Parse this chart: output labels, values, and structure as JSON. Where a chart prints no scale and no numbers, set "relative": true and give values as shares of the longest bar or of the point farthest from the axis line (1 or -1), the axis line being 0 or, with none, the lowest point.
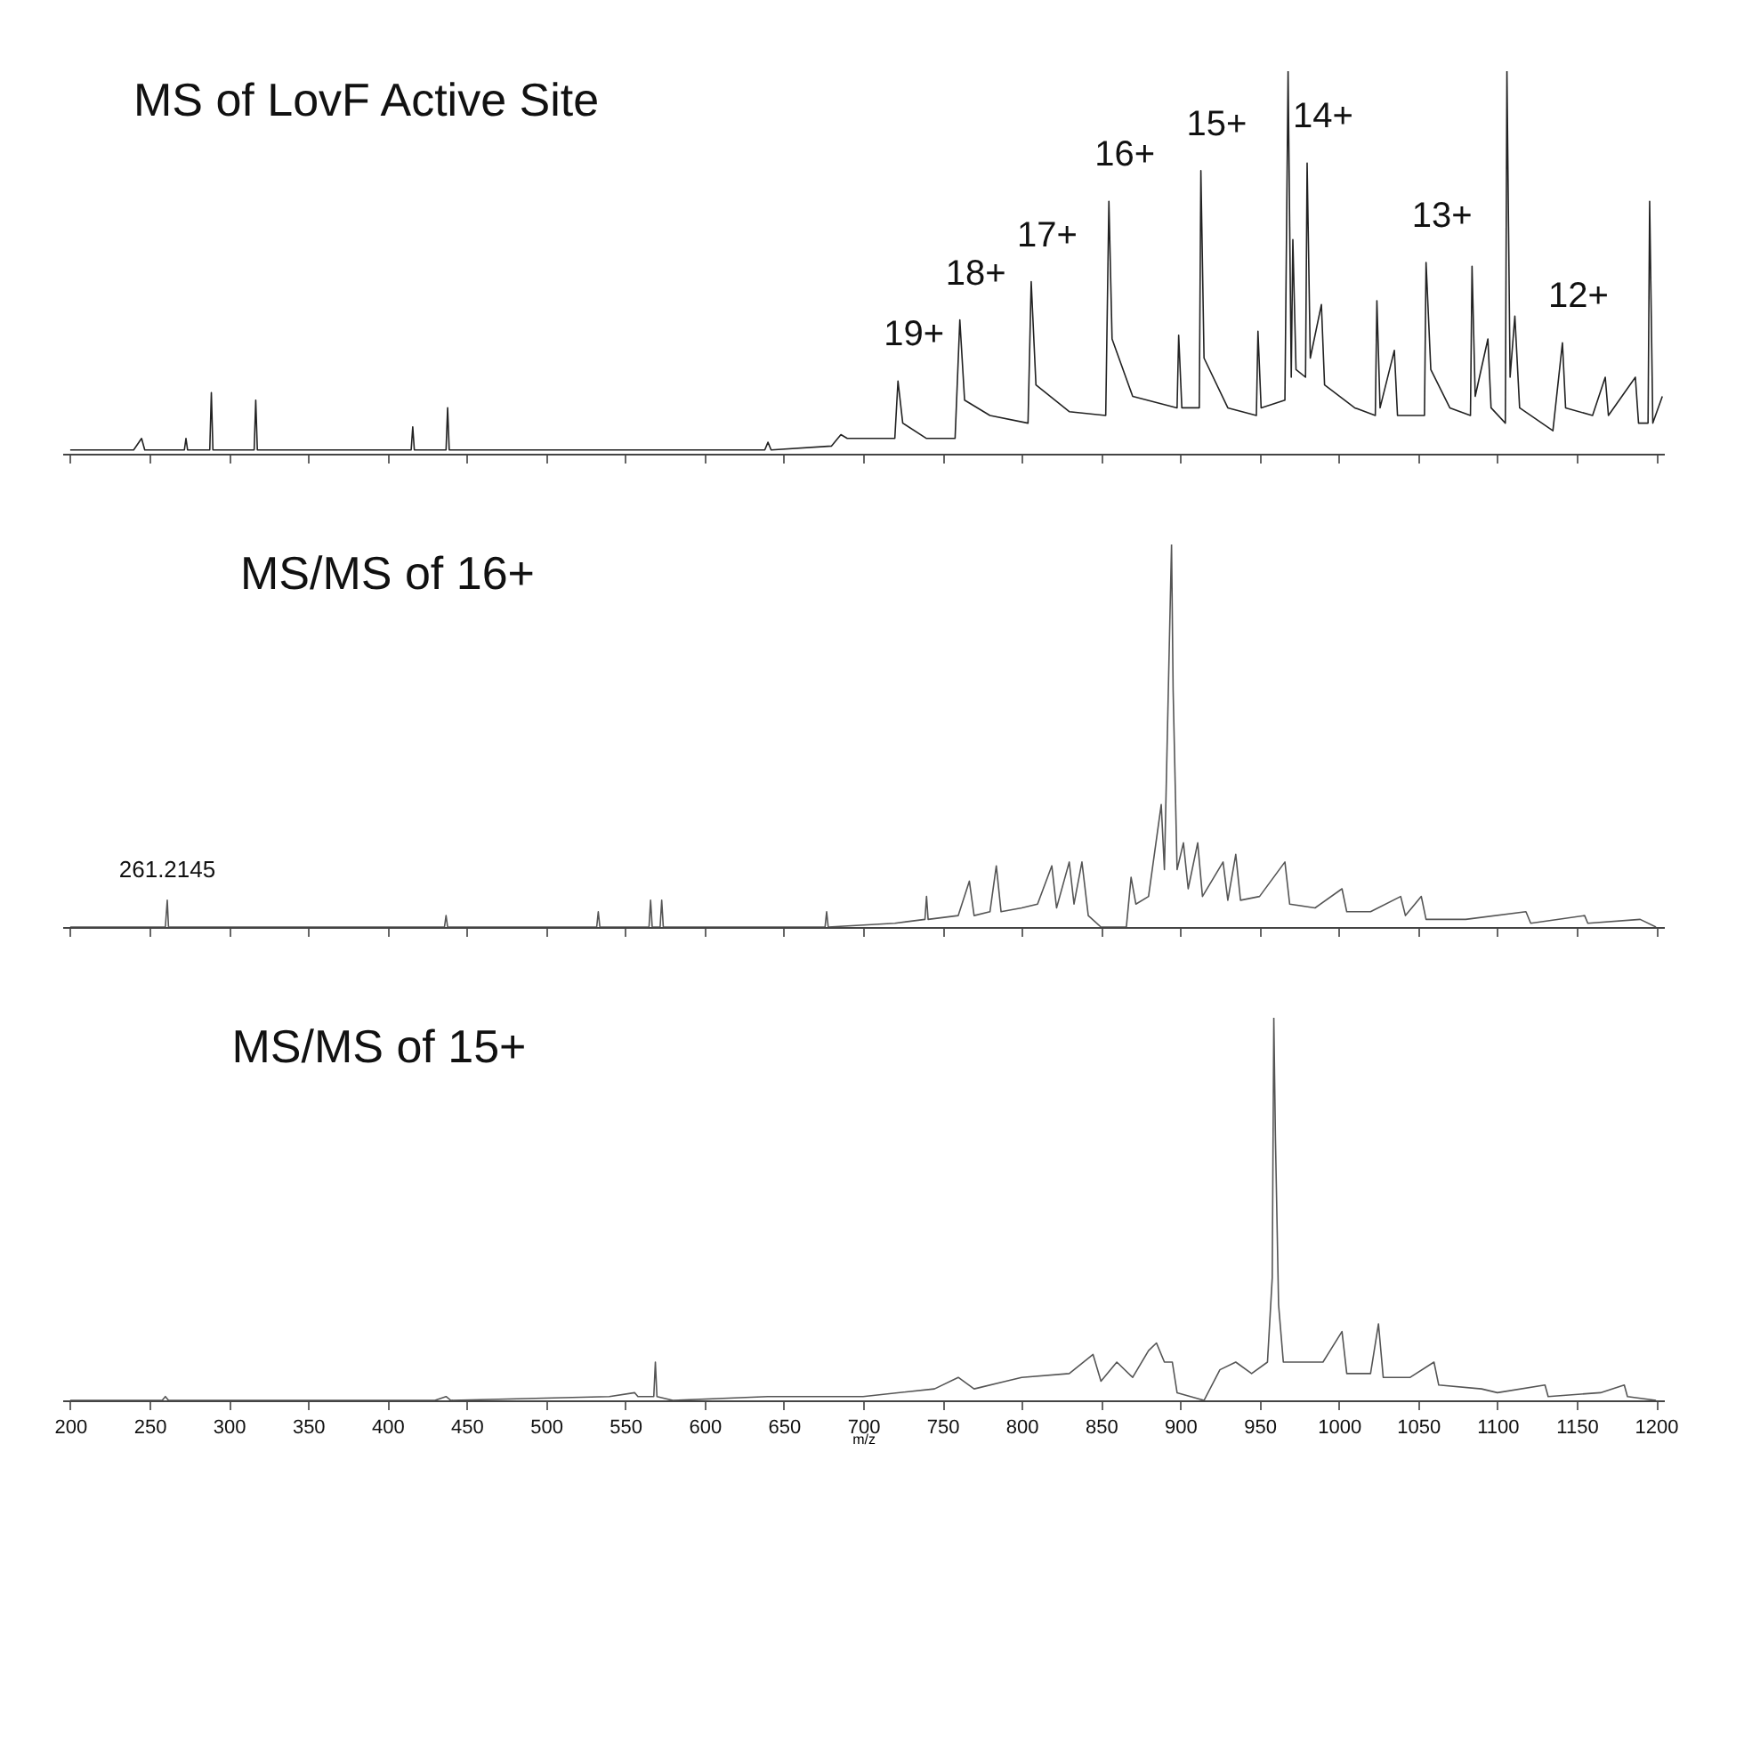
{
  "chart_data": [
    {
      "type": "line",
      "title": "MS of LovF Active Site",
      "relative": true,
      "xlim": [
        195,
        1205
      ],
      "xticks": [
        200,
        250,
        300,
        350,
        400,
        450,
        500,
        550,
        600,
        650,
        700,
        750,
        800,
        850,
        900,
        950,
        1000,
        1050,
        1100,
        1150,
        1200
      ],
      "tick_labels": false,
      "grid": false,
      "marker": "none",
      "line_style": "solid",
      "annotations": [
        {
          "text": "19+",
          "x": 722,
          "y": 0.19
        },
        {
          "text": "18+",
          "x": 761,
          "y": 0.35
        },
        {
          "text": "17+",
          "x": 806,
          "y": 0.45
        },
        {
          "text": "16+",
          "x": 855,
          "y": 0.66
        },
        {
          "text": "15+",
          "x": 913,
          "y": 0.74
        },
        {
          "text": "14+",
          "x": 980,
          "y": 0.76
        },
        {
          "text": "13+",
          "x": 1055,
          "y": 0.5
        },
        {
          "text": "12+",
          "x": 1141,
          "y": 0.29
        }
      ],
      "series": [
        {
          "color": "#222222",
          "x": [
            200,
            240,
            245,
            247,
            272,
            273,
            274,
            288,
            289,
            290,
            316,
            317,
            318,
            390,
            400,
            415,
            416,
            417,
            437,
            438,
            439,
            500,
            600,
            638,
            640,
            642,
            680,
            686,
            690,
            720,
            722,
            725,
            740,
            758,
            761,
            764,
            780,
            804,
            806,
            809,
            830,
            853,
            855,
            857,
            870,
            898,
            899,
            901,
            912,
            913,
            915,
            930,
            948,
            949,
            951,
            966,
            968,
            970,
            971,
            973,
            979,
            980,
            982,
            989,
            991,
            1010,
            1023,
            1024,
            1026,
            1035,
            1037,
            1054,
            1055,
            1058,
            1070,
            1083,
            1084,
            1086,
            1094,
            1096,
            1105,
            1106,
            1108,
            1111,
            1114,
            1135,
            1141,
            1143,
            1160,
            1168,
            1170,
            1187,
            1189,
            1195,
            1196,
            1198,
            1204
          ],
          "values": [
            0.01,
            0.01,
            0.04,
            0.01,
            0.01,
            0.04,
            0.01,
            0.01,
            0.16,
            0.01,
            0.01,
            0.14,
            0.01,
            0.01,
            0.01,
            0.01,
            0.07,
            0.01,
            0.01,
            0.12,
            0.01,
            0.01,
            0.01,
            0.01,
            0.03,
            0.01,
            0.02,
            0.05,
            0.04,
            0.04,
            0.19,
            0.08,
            0.04,
            0.04,
            0.35,
            0.14,
            0.1,
            0.08,
            0.45,
            0.18,
            0.11,
            0.1,
            0.66,
            0.3,
            0.15,
            0.12,
            0.31,
            0.12,
            0.12,
            0.74,
            0.25,
            0.12,
            0.1,
            0.32,
            0.12,
            0.14,
            1.0,
            0.2,
            0.56,
            0.22,
            0.2,
            0.76,
            0.25,
            0.39,
            0.18,
            0.12,
            0.1,
            0.4,
            0.12,
            0.27,
            0.1,
            0.1,
            0.5,
            0.22,
            0.12,
            0.1,
            0.49,
            0.15,
            0.3,
            0.12,
            0.08,
            1.0,
            0.2,
            0.36,
            0.12,
            0.06,
            0.29,
            0.12,
            0.1,
            0.2,
            0.1,
            0.2,
            0.08,
            0.08,
            0.66,
            0.08,
            0.15
          ]
        }
      ]
    },
    {
      "type": "line",
      "title": "MS/MS of 16+",
      "relative": true,
      "xlim": [
        195,
        1205
      ],
      "xticks": [
        200,
        250,
        300,
        350,
        400,
        450,
        500,
        550,
        600,
        650,
        700,
        750,
        800,
        850,
        900,
        950,
        1000,
        1050,
        1100,
        1150,
        1200
      ],
      "tick_labels": false,
      "grid": false,
      "marker": "none",
      "line_style": "solid",
      "annotations": [
        {
          "text": "261.2145",
          "x": 261.2,
          "y": 0.07
        }
      ],
      "series": [
        {
          "color": "#555555",
          "x": [
            200,
            260,
            261.2,
            262,
            436,
            437,
            438,
            532,
            533,
            534,
            565,
            566,
            567,
            572,
            573,
            574,
            650,
            676,
            677,
            678,
            720,
            739,
            740,
            741,
            760,
            767,
            770,
            780,
            784,
            787,
            800,
            810,
            819,
            822,
            830,
            833,
            838,
            842,
            850,
            866,
            869,
            872,
            880,
            888,
            890,
            894.5,
            895.5,
            898,
            902,
            905,
            911,
            914,
            927,
            930,
            935,
            938,
            950,
            966,
            969,
            985,
            1002,
            1005,
            1020,
            1039,
            1042,
            1052,
            1055,
            1080,
            1118,
            1121,
            1155,
            1157,
            1190,
            1200
          ],
          "values": [
            0,
            0,
            0.07,
            0,
            0,
            0.03,
            0,
            0,
            0.04,
            0,
            0,
            0.07,
            0,
            0,
            0.07,
            0,
            0,
            0,
            0.04,
            0,
            0.01,
            0.02,
            0.08,
            0.02,
            0.03,
            0.12,
            0.03,
            0.04,
            0.16,
            0.04,
            0.05,
            0.06,
            0.16,
            0.05,
            0.17,
            0.06,
            0.17,
            0.03,
            0,
            0,
            0.13,
            0.06,
            0.08,
            0.32,
            0.15,
            1.0,
            0.62,
            0.15,
            0.22,
            0.1,
            0.22,
            0.08,
            0.17,
            0.07,
            0.19,
            0.07,
            0.08,
            0.17,
            0.06,
            0.05,
            0.1,
            0.04,
            0.04,
            0.08,
            0.03,
            0.08,
            0.02,
            0.02,
            0.04,
            0.01,
            0.03,
            0.01,
            0.02,
            0
          ]
        }
      ]
    },
    {
      "type": "line",
      "title": "MS/MS of 15+",
      "xlabel": "m/z",
      "relative": true,
      "xlim": [
        195,
        1205
      ],
      "xticks": [
        200,
        250,
        300,
        350,
        400,
        450,
        500,
        550,
        600,
        650,
        700,
        750,
        800,
        850,
        900,
        950,
        1000,
        1050,
        1100,
        1150,
        1200
      ],
      "tick_labels": "x",
      "grid": false,
      "marker": "none",
      "line_style": "solid",
      "series": [
        {
          "color": "#555555",
          "x": [
            200,
            258,
            260,
            262,
            430,
            437,
            440,
            540,
            556,
            558,
            568,
            569,
            570,
            580,
            640,
            700,
            745,
            760,
            770,
            790,
            800,
            830,
            845,
            850,
            860,
            870,
            880,
            885,
            890,
            895,
            898,
            915,
            925,
            935,
            945,
            955,
            958,
            959,
            960,
            962,
            965,
            975,
            990,
            1002,
            1005,
            1020,
            1025,
            1028,
            1045,
            1060,
            1063,
            1090,
            1100,
            1130,
            1132,
            1165,
            1180,
            1182,
            1200
          ],
          "values": [
            0,
            0,
            0.01,
            0,
            0,
            0.01,
            0,
            0.01,
            0.02,
            0.01,
            0.01,
            0.1,
            0.01,
            0,
            0.01,
            0.01,
            0.03,
            0.06,
            0.03,
            0.05,
            0.06,
            0.07,
            0.12,
            0.05,
            0.1,
            0.06,
            0.13,
            0.15,
            0.1,
            0.1,
            0.02,
            0,
            0.08,
            0.1,
            0.07,
            0.1,
            0.32,
            1.0,
            0.69,
            0.25,
            0.1,
            0.1,
            0.1,
            0.18,
            0.07,
            0.07,
            0.2,
            0.06,
            0.06,
            0.1,
            0.04,
            0.03,
            0.02,
            0.04,
            0.01,
            0.02,
            0.04,
            0.01,
            0
          ]
        }
      ]
    }
  ]
}
